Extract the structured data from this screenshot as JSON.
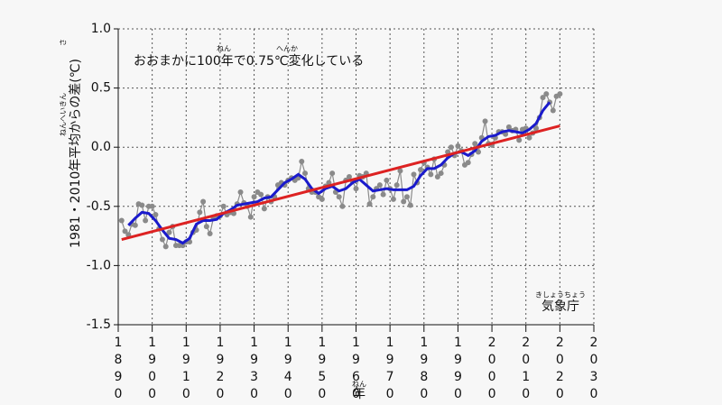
{
  "chart_data": {
    "type": "line",
    "annotation": "おおまかに100年で0.75℃変化している",
    "annotation_ruby": [
      "ねん",
      "へんか"
    ],
    "y_label": "1981・2010年平均からの差(℃)",
    "y_label_ruby": [
      "ねんへいきん",
      "さ"
    ],
    "x_label": "年",
    "x_label_ruby": "ねん",
    "source": "気象庁",
    "source_ruby": "きしょうちょう",
    "xlim": [
      1890,
      2030
    ],
    "xticks": [
      1890,
      1900,
      1910,
      1920,
      1930,
      1940,
      1950,
      1960,
      1970,
      1980,
      1990,
      2000,
      2010,
      2020,
      2030
    ],
    "ylim": [
      -1.5,
      1.0
    ],
    "yticks": [
      {
        "value": 1.0,
        "label": "1.0"
      },
      0.5,
      {
        "value": 0.0,
        "label": "0.0"
      },
      -0.5,
      {
        "value": -1.0,
        "label": "-1.0"
      },
      -1.5
    ],
    "grid": true,
    "series": [
      {
        "color": "#8a8a8a",
        "markers": true,
        "x": [
          1891,
          1892,
          1893,
          1894,
          1895,
          1896,
          1897,
          1898,
          1899,
          1900,
          1901,
          1902,
          1903,
          1904,
          1905,
          1906,
          1907,
          1908,
          1909,
          1910,
          1911,
          1912,
          1913,
          1914,
          1915,
          1916,
          1917,
          1918,
          1919,
          1920,
          1921,
          1922,
          1923,
          1924,
          1925,
          1926,
          1927,
          1928,
          1929,
          1930,
          1931,
          1932,
          1933,
          1934,
          1935,
          1936,
          1937,
          1938,
          1939,
          1940,
          1941,
          1942,
          1943,
          1944,
          1945,
          1946,
          1947,
          1948,
          1949,
          1950,
          1951,
          1952,
          1953,
          1954,
          1955,
          1956,
          1957,
          1958,
          1959,
          1960,
          1961,
          1962,
          1963,
          1964,
          1965,
          1966,
          1967,
          1968,
          1969,
          1970,
          1971,
          1972,
          1973,
          1974,
          1975,
          1976,
          1977,
          1978,
          1979,
          1980,
          1981,
          1982,
          1983,
          1984,
          1985,
          1986,
          1987,
          1988,
          1989,
          1990,
          1991,
          1992,
          1993,
          1994,
          1995,
          1996,
          1997,
          1998,
          1999,
          2000,
          2001,
          2002,
          2003,
          2004,
          2005,
          2006,
          2007,
          2008,
          2009,
          2010,
          2011,
          2012,
          2013,
          2014,
          2015,
          2016,
          2017,
          2018,
          2019,
          2020
        ],
        "values": [
          -0.62,
          -0.71,
          -0.74,
          -0.65,
          -0.66,
          -0.48,
          -0.49,
          -0.62,
          -0.5,
          -0.5,
          -0.57,
          -0.69,
          -0.78,
          -0.84,
          -0.72,
          -0.67,
          -0.83,
          -0.83,
          -0.83,
          -0.8,
          -0.8,
          -0.72,
          -0.7,
          -0.55,
          -0.46,
          -0.67,
          -0.73,
          -0.6,
          -0.58,
          -0.58,
          -0.5,
          -0.57,
          -0.55,
          -0.56,
          -0.48,
          -0.38,
          -0.47,
          -0.5,
          -0.59,
          -0.42,
          -0.38,
          -0.4,
          -0.52,
          -0.42,
          -0.46,
          -0.42,
          -0.32,
          -0.3,
          -0.32,
          -0.28,
          -0.26,
          -0.28,
          -0.26,
          -0.12,
          -0.22,
          -0.35,
          -0.38,
          -0.38,
          -0.42,
          -0.44,
          -0.33,
          -0.3,
          -0.22,
          -0.38,
          -0.42,
          -0.5,
          -0.28,
          -0.25,
          -0.29,
          -0.35,
          -0.24,
          -0.25,
          -0.22,
          -0.48,
          -0.42,
          -0.35,
          -0.32,
          -0.4,
          -0.28,
          -0.35,
          -0.44,
          -0.32,
          -0.2,
          -0.46,
          -0.42,
          -0.49,
          -0.23,
          -0.3,
          -0.19,
          -0.13,
          -0.17,
          -0.23,
          -0.1,
          -0.25,
          -0.22,
          -0.15,
          -0.04,
          0.0,
          -0.07,
          0.01,
          -0.03,
          -0.15,
          -0.13,
          -0.06,
          0.03,
          -0.04,
          0.08,
          0.22,
          0.03,
          0.02,
          0.08,
          0.13,
          0.13,
          0.11,
          0.17,
          0.14,
          0.15,
          0.06,
          0.15,
          0.16,
          0.08,
          0.12,
          0.16,
          0.25,
          0.42,
          0.45,
          0.38,
          0.31,
          0.43,
          0.45
        ]
      },
      {
        "color": "#1a1acc",
        "markers": false,
        "x": [
          1893,
          1895,
          1897,
          1899,
          1901,
          1903,
          1905,
          1907,
          1909,
          1911,
          1913,
          1915,
          1917,
          1919,
          1921,
          1923,
          1925,
          1927,
          1929,
          1931,
          1933,
          1935,
          1937,
          1939,
          1941,
          1943,
          1945,
          1947,
          1949,
          1951,
          1953,
          1955,
          1957,
          1959,
          1961,
          1963,
          1965,
          1967,
          1969,
          1971,
          1973,
          1975,
          1977,
          1979,
          1981,
          1983,
          1985,
          1987,
          1989,
          1991,
          1993,
          1995,
          1997,
          1999,
          2001,
          2003,
          2005,
          2007,
          2009,
          2011,
          2013,
          2015,
          2017
        ],
        "values": [
          -0.66,
          -0.6,
          -0.55,
          -0.56,
          -0.62,
          -0.7,
          -0.77,
          -0.78,
          -0.81,
          -0.77,
          -0.65,
          -0.62,
          -0.62,
          -0.61,
          -0.56,
          -0.53,
          -0.49,
          -0.48,
          -0.47,
          -0.46,
          -0.43,
          -0.42,
          -0.36,
          -0.3,
          -0.27,
          -0.23,
          -0.27,
          -0.35,
          -0.39,
          -0.35,
          -0.33,
          -0.37,
          -0.35,
          -0.3,
          -0.27,
          -0.32,
          -0.37,
          -0.36,
          -0.35,
          -0.36,
          -0.36,
          -0.36,
          -0.33,
          -0.24,
          -0.18,
          -0.18,
          -0.15,
          -0.09,
          -0.05,
          -0.04,
          -0.07,
          -0.03,
          0.05,
          0.09,
          0.1,
          0.13,
          0.14,
          0.13,
          0.12,
          0.15,
          0.2,
          0.31,
          0.38
        ]
      },
      {
        "color": "#dd2222",
        "markers": false,
        "x": [
          1891,
          2020
        ],
        "values": [
          -0.78,
          0.18
        ]
      }
    ]
  }
}
